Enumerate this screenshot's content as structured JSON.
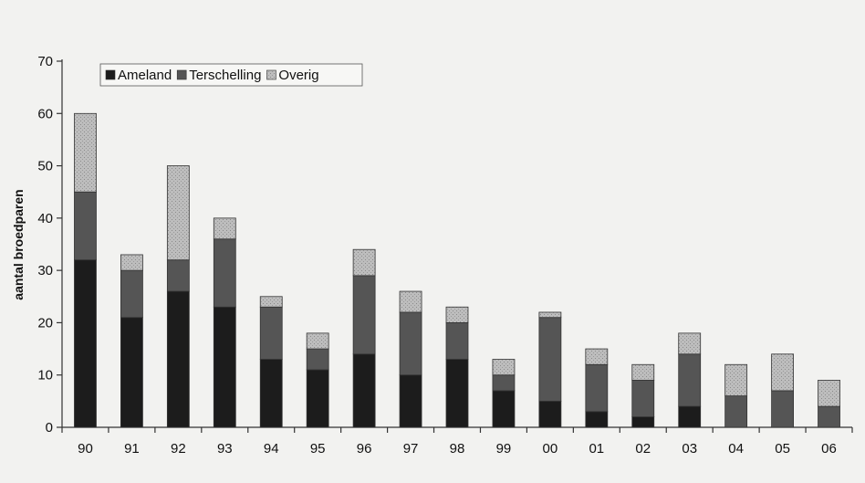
{
  "chart_data": {
    "type": "bar",
    "stacked": true,
    "title": "",
    "xlabel": "",
    "ylabel": "aantal broedparen",
    "ylim": [
      0,
      70
    ],
    "yticks": [
      0,
      10,
      20,
      30,
      40,
      50,
      60,
      70
    ],
    "grid": false,
    "legend_position": "top-left",
    "categories": [
      "90",
      "91",
      "92",
      "93",
      "94",
      "95",
      "96",
      "97",
      "98",
      "99",
      "00",
      "01",
      "02",
      "03",
      "04",
      "05",
      "06"
    ],
    "series": [
      {
        "name": "Ameland",
        "color": "#1c1c1c",
        "values": [
          32,
          21,
          26,
          23,
          13,
          11,
          14,
          10,
          13,
          7,
          5,
          3,
          2,
          4,
          0,
          0,
          0
        ]
      },
      {
        "name": "Terschelling",
        "color": "#555555",
        "values": [
          13,
          9,
          6,
          13,
          10,
          4,
          15,
          12,
          7,
          3,
          16,
          9,
          7,
          10,
          6,
          7,
          4
        ]
      },
      {
        "name": "Overig",
        "color": "#b8b8b8",
        "values": [
          15,
          3,
          18,
          4,
          2,
          3,
          5,
          4,
          3,
          3,
          1,
          3,
          3,
          4,
          6,
          7,
          5
        ]
      }
    ]
  }
}
